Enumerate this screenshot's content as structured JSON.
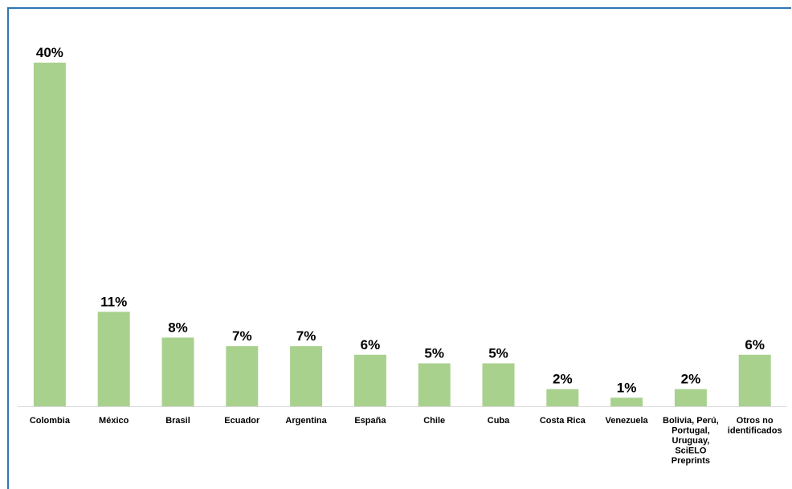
{
  "chart_data": {
    "type": "bar",
    "title": "",
    "xlabel": "",
    "ylabel": "",
    "categories": [
      [
        "Colombia"
      ],
      [
        "México"
      ],
      [
        "Brasil"
      ],
      [
        "Ecuador"
      ],
      [
        "Argentina"
      ],
      [
        "España"
      ],
      [
        "Chile"
      ],
      [
        "Cuba"
      ],
      [
        "Costa Rica"
      ],
      [
        "Venezuela"
      ],
      [
        "Bolivia, Perú,",
        "Portugal,",
        "Uruguay,",
        "SciELO",
        "Preprints"
      ],
      [
        "Otros no",
        "identificados"
      ]
    ],
    "values": [
      40,
      11,
      8,
      7,
      7,
      6,
      5,
      5,
      2,
      1,
      2,
      6
    ],
    "value_labels": [
      "40%",
      "11%",
      "8%",
      "7%",
      "7%",
      "6%",
      "5%",
      "5%",
      "2%",
      "1%",
      "2%",
      "6%"
    ],
    "ylim": [
      0,
      40
    ],
    "grid": false,
    "legend": "none",
    "bar_color": "#a9d18e",
    "border_color": "#2e75b6"
  }
}
